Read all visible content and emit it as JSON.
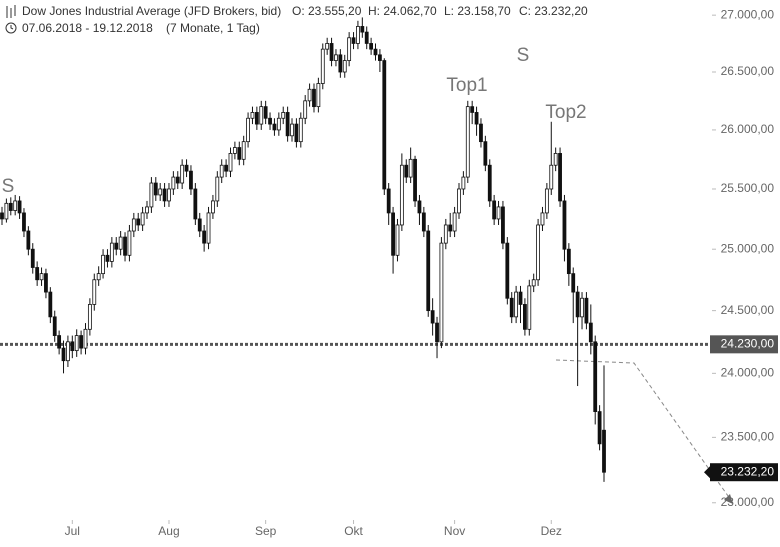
{
  "chart_data": {
    "type": "candlestick",
    "title": "Dow Jones Industrial Average (JFD Brokers, bid)",
    "header_stats": [
      "O: 23.555,20",
      "H: 24.062,70",
      "L: 23.158,70",
      "C: 23.232,20"
    ],
    "date_range": "07.06.2018 - 19.12.2018",
    "duration": "(7 Monate, 1 Tag)",
    "annotations": [
      "S",
      "Top1",
      "S",
      "Top2"
    ],
    "log_scale": true,
    "ylim": [
      22870,
      27135
    ],
    "yticks": [
      {
        "value": 27000,
        "label": "27.000,00"
      },
      {
        "value": 26500,
        "label": "26.500,00"
      },
      {
        "value": 26000,
        "label": "26.000,00"
      },
      {
        "value": 25500,
        "label": "25.500,00"
      },
      {
        "value": 25000,
        "label": "25.000,00"
      },
      {
        "value": 24500,
        "label": "24.500,00"
      },
      {
        "value": 24000,
        "label": "24.000,00"
      },
      {
        "value": 23500,
        "label": "23.500,00"
      },
      {
        "value": 23000,
        "label": "23.000,00"
      }
    ],
    "reference_line": {
      "value": 24230,
      "label": "24.230,00"
    },
    "last_price": {
      "value": 23232.2,
      "label": "23.232,20"
    },
    "categories": [
      null,
      null,
      null,
      null,
      null,
      null,
      null,
      null,
      null,
      null,
      null,
      null,
      null,
      null,
      null,
      null,
      "Jul",
      null,
      null,
      null,
      null,
      null,
      null,
      null,
      null,
      null,
      null,
      null,
      null,
      null,
      null,
      null,
      null,
      null,
      null,
      null,
      null,
      null,
      "Aug",
      null,
      null,
      null,
      null,
      null,
      null,
      null,
      null,
      null,
      null,
      null,
      null,
      null,
      null,
      null,
      null,
      null,
      null,
      null,
      null,
      null,
      "Sep",
      null,
      null,
      null,
      null,
      null,
      null,
      null,
      null,
      null,
      null,
      null,
      null,
      null,
      null,
      null,
      null,
      null,
      null,
      null,
      "Okt",
      null,
      null,
      null,
      null,
      null,
      null,
      null,
      null,
      null,
      null,
      null,
      null,
      null,
      null,
      null,
      null,
      null,
      null,
      null,
      null,
      null,
      null,
      "Nov",
      null,
      null,
      null,
      null,
      null,
      null,
      null,
      null,
      null,
      null,
      null,
      null,
      null,
      null,
      null,
      null,
      null,
      null,
      null,
      null,
      null,
      "Dez",
      null,
      null,
      null,
      null,
      null,
      null,
      null,
      null,
      null,
      null,
      null,
      null
    ],
    "candles": [
      [
        25300,
        25350,
        25200,
        25250
      ],
      [
        25250,
        25420,
        25220,
        25380
      ],
      [
        25380,
        25430,
        25280,
        25320
      ],
      [
        25320,
        25450,
        25280,
        25400
      ],
      [
        25400,
        25440,
        25250,
        25300
      ],
      [
        25300,
        25340,
        25100,
        25150
      ],
      [
        25150,
        25190,
        24950,
        25000
      ],
      [
        25000,
        25050,
        24800,
        24850
      ],
      [
        24850,
        24900,
        24700,
        24750
      ],
      [
        24750,
        24850,
        24700,
        24800
      ],
      [
        24800,
        24840,
        24600,
        24650
      ],
      [
        24650,
        24690,
        24400,
        24450
      ],
      [
        24450,
        24500,
        24250,
        24300
      ],
      [
        24300,
        24340,
        24150,
        24200
      ],
      [
        24200,
        24260,
        24000,
        24100
      ],
      [
        24100,
        24300,
        24050,
        24250
      ],
      [
        24250,
        24300,
        24120,
        24180
      ],
      [
        24180,
        24350,
        24130,
        24300
      ],
      [
        24300,
        24340,
        24150,
        24200
      ],
      [
        24200,
        24400,
        24150,
        24350
      ],
      [
        24350,
        24600,
        24300,
        24550
      ],
      [
        24550,
        24800,
        24500,
        24750
      ],
      [
        24750,
        24860,
        24700,
        24800
      ],
      [
        24800,
        25000,
        24760,
        24950
      ],
      [
        24950,
        25000,
        24850,
        24900
      ],
      [
        24900,
        25100,
        24850,
        25050
      ],
      [
        25050,
        25100,
        24950,
        25000
      ],
      [
        25000,
        25150,
        24950,
        25100
      ],
      [
        25100,
        25140,
        24900,
        24950
      ],
      [
        24950,
        25200,
        24900,
        25150
      ],
      [
        25150,
        25300,
        25100,
        25250
      ],
      [
        25250,
        25300,
        25150,
        25200
      ],
      [
        25200,
        25350,
        25150,
        25300
      ],
      [
        25300,
        25400,
        25250,
        25350
      ],
      [
        25350,
        25600,
        25300,
        25550
      ],
      [
        25550,
        25600,
        25400,
        25450
      ],
      [
        25450,
        25550,
        25400,
        25500
      ],
      [
        25500,
        25550,
        25350,
        25400
      ],
      [
        25400,
        25550,
        25350,
        25500
      ],
      [
        25500,
        25650,
        25450,
        25600
      ],
      [
        25600,
        25650,
        25500,
        25550
      ],
      [
        25550,
        25750,
        25500,
        25700
      ],
      [
        25700,
        25750,
        25600,
        25650
      ],
      [
        25650,
        25700,
        25450,
        25500
      ],
      [
        25500,
        25550,
        25200,
        25250
      ],
      [
        25250,
        25300,
        25100,
        25150
      ],
      [
        25150,
        25200,
        24980,
        25050
      ],
      [
        25050,
        25350,
        25000,
        25300
      ],
      [
        25300,
        25450,
        25250,
        25400
      ],
      [
        25400,
        25650,
        25350,
        25600
      ],
      [
        25600,
        25750,
        25550,
        25700
      ],
      [
        25700,
        25750,
        25600,
        25650
      ],
      [
        25650,
        25850,
        25600,
        25800
      ],
      [
        25800,
        25900,
        25750,
        25850
      ],
      [
        25850,
        25900,
        25700,
        25750
      ],
      [
        25750,
        25950,
        25700,
        25900
      ],
      [
        25900,
        26150,
        25850,
        26100
      ],
      [
        26100,
        26200,
        26050,
        26150
      ],
      [
        26150,
        26200,
        26000,
        26050
      ],
      [
        26050,
        26250,
        26000,
        26200
      ],
      [
        26200,
        26250,
        26050,
        26100
      ],
      [
        26100,
        26150,
        26000,
        26050
      ],
      [
        26050,
        26100,
        25950,
        26000
      ],
      [
        26000,
        26150,
        25950,
        26100
      ],
      [
        26100,
        26200,
        26050,
        26150
      ],
      [
        26150,
        26200,
        25900,
        25950
      ],
      [
        25950,
        26100,
        25900,
        26050
      ],
      [
        26050,
        26100,
        25850,
        25900
      ],
      [
        25900,
        26150,
        25850,
        26100
      ],
      [
        26100,
        26300,
        26050,
        26250
      ],
      [
        26250,
        26400,
        26200,
        26350
      ],
      [
        26350,
        26400,
        26150,
        26200
      ],
      [
        26200,
        26450,
        26150,
        26400
      ],
      [
        26400,
        26750,
        26350,
        26700
      ],
      [
        26700,
        26800,
        26650,
        26750
      ],
      [
        26750,
        26800,
        26550,
        26600
      ],
      [
        26600,
        26700,
        26550,
        26650
      ],
      [
        26650,
        26700,
        26450,
        26500
      ],
      [
        26500,
        26650,
        26450,
        26600
      ],
      [
        26600,
        26850,
        26550,
        26800
      ],
      [
        26800,
        26850,
        26700,
        26750
      ],
      [
        26750,
        26950,
        26700,
        26900
      ],
      [
        26900,
        26980,
        26800,
        26850
      ],
      [
        26850,
        26900,
        26700,
        26750
      ],
      [
        26750,
        26800,
        26650,
        26700
      ],
      [
        26700,
        26750,
        26600,
        26650
      ],
      [
        26650,
        26700,
        26500,
        26600
      ],
      [
        26600,
        26620,
        25450,
        25500
      ],
      [
        25500,
        25550,
        25200,
        25300
      ],
      [
        25300,
        25350,
        24800,
        24950
      ],
      [
        24950,
        25250,
        24900,
        25200
      ],
      [
        25200,
        25800,
        25150,
        25700
      ],
      [
        25700,
        25750,
        25550,
        25600
      ],
      [
        25600,
        25850,
        25550,
        25750
      ],
      [
        25750,
        25780,
        25350,
        25400
      ],
      [
        25400,
        25450,
        25200,
        25300
      ],
      [
        25300,
        25350,
        25100,
        25150
      ],
      [
        25150,
        25200,
        24450,
        24500
      ],
      [
        24500,
        24600,
        24300,
        24400
      ],
      [
        24400,
        24450,
        24120,
        24250
      ],
      [
        24250,
        25100,
        24200,
        25050
      ],
      [
        25050,
        25250,
        25000,
        25200
      ],
      [
        25200,
        25300,
        25100,
        25150
      ],
      [
        25150,
        25350,
        25100,
        25300
      ],
      [
        25300,
        25550,
        25250,
        25500
      ],
      [
        25500,
        25650,
        25450,
        25600
      ],
      [
        25600,
        26250,
        25550,
        26200
      ],
      [
        26200,
        26250,
        26050,
        26150
      ],
      [
        26150,
        26200,
        25950,
        26050
      ],
      [
        26050,
        26100,
        25850,
        25900
      ],
      [
        25900,
        25950,
        25650,
        25700
      ],
      [
        25700,
        25750,
        25350,
        25400
      ],
      [
        25400,
        25450,
        25200,
        25250
      ],
      [
        25250,
        25400,
        25200,
        25350
      ],
      [
        25350,
        25400,
        25000,
        25050
      ],
      [
        25050,
        25100,
        24550,
        24600
      ],
      [
        24600,
        24650,
        24400,
        24450
      ],
      [
        24450,
        24700,
        24400,
        24650
      ],
      [
        24650,
        24700,
        24400,
        24550
      ],
      [
        24550,
        24600,
        24300,
        24350
      ],
      [
        24350,
        24750,
        24300,
        24700
      ],
      [
        24700,
        24800,
        24650,
        24750
      ],
      [
        24750,
        25250,
        24700,
        25200
      ],
      [
        25200,
        25350,
        25150,
        25300
      ],
      [
        25300,
        25550,
        25250,
        25500
      ],
      [
        25500,
        26070,
        25450,
        25700
      ],
      [
        25700,
        25850,
        25650,
        25800
      ],
      [
        25800,
        25850,
        25350,
        25400
      ],
      [
        25400,
        25450,
        24900,
        25000
      ],
      [
        25000,
        25050,
        24700,
        24800
      ],
      [
        24800,
        24850,
        24400,
        24650
      ],
      [
        24650,
        24700,
        23900,
        24450
      ],
      [
        24450,
        24650,
        24350,
        24600
      ],
      [
        24600,
        24650,
        24350,
        24400
      ],
      [
        24400,
        24550,
        24150,
        24250
      ],
      [
        24250,
        24300,
        23600,
        23700
      ],
      [
        23700,
        23750,
        23400,
        23450
      ],
      [
        23555.2,
        24062.7,
        23158.7,
        23232.2
      ]
    ]
  }
}
